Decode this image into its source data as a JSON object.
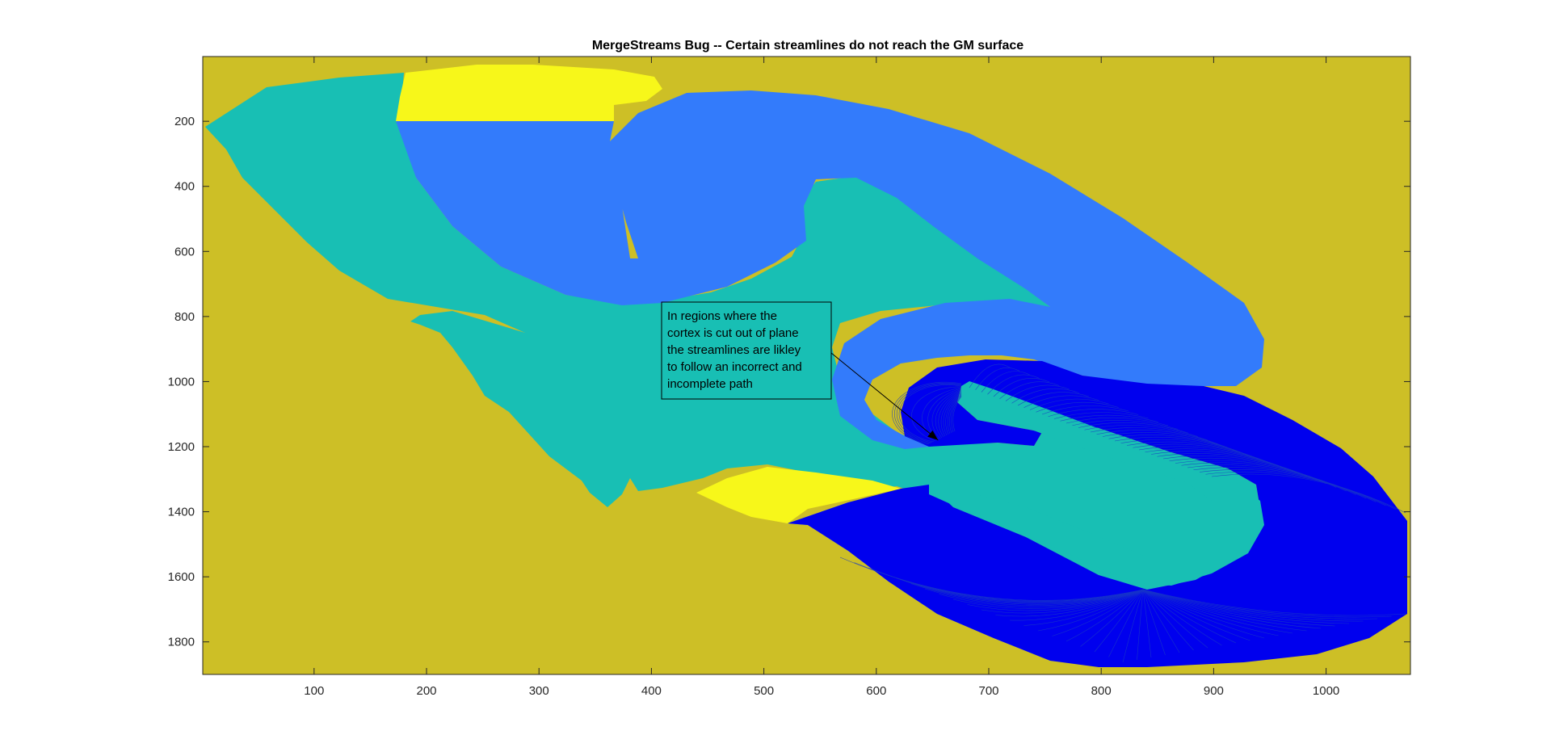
{
  "chart_data": {
    "type": "image",
    "title": "MergeStreams Bug -- Certain streamlines do not reach the GM surface",
    "xlabel": "",
    "ylabel": "",
    "xlim": [
      1,
      1075
    ],
    "ylim": [
      1,
      1900
    ],
    "y_reversed": true,
    "xticks": [
      100,
      200,
      300,
      400,
      500,
      600,
      700,
      800,
      900,
      1000
    ],
    "yticks": [
      200,
      400,
      600,
      800,
      1000,
      1200,
      1400,
      1600,
      1800
    ],
    "grid": false,
    "colors": {
      "background": "#cdbf26",
      "white_matter": "#18bfb4",
      "gray_matter": "#337bfb",
      "yellow_region": "#f7f71a",
      "streamline_region": "#0000ee",
      "streamline": "#1a3cc4"
    },
    "annotation": {
      "lines": [
        "In regions where the",
        "cortex is cut out of plane",
        "the streamlines are likley",
        "to follow an incorrect and",
        "incomplete path"
      ],
      "arrow_to": [
        655,
        1180
      ]
    }
  }
}
